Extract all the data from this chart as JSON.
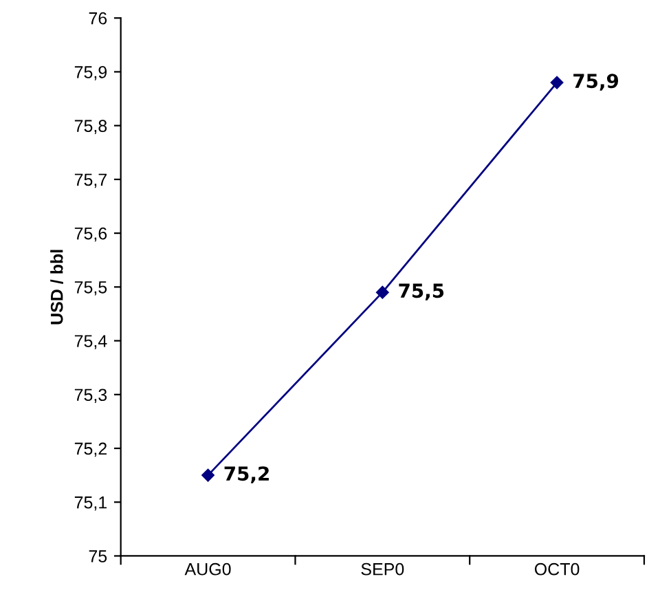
{
  "chart_data": {
    "type": "line",
    "ylabel": "USD / bbl",
    "categories": [
      "AUG0",
      "SEP0",
      "OCT0"
    ],
    "series": [
      {
        "color": "#000080",
        "values": [
          75.15,
          75.49,
          75.88
        ],
        "value_labels": [
          "75,2",
          "75,5",
          "75,9"
        ]
      }
    ],
    "ylim": [
      75,
      76
    ],
    "yticks": [
      75,
      {
        "value": 75.1,
        "label": "75,1"
      },
      {
        "value": 75.2,
        "label": "75,2"
      },
      {
        "value": 75.3,
        "label": "75,3"
      },
      {
        "value": 75.4,
        "label": "75,4"
      },
      {
        "value": 75.5,
        "label": "75,5"
      },
      {
        "value": 75.6,
        "label": "75,6"
      },
      {
        "value": 75.7,
        "label": "75,7"
      },
      {
        "value": 75.8,
        "label": "75,8"
      },
      {
        "value": 75.9,
        "label": "75,9"
      },
      76
    ],
    "grid": false,
    "marker": "diamond",
    "line_style": "solid"
  }
}
